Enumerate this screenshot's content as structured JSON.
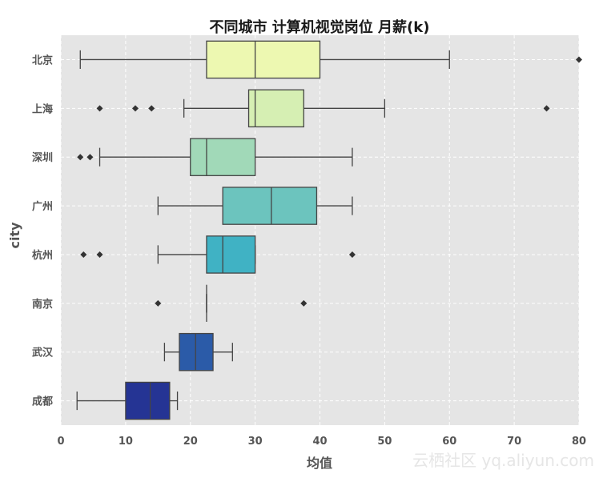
{
  "chart_data": {
    "type": "box",
    "orientation": "horizontal",
    "title": "不同城市 计算机视觉岗位 月薪(k)",
    "xlabel": "均值",
    "ylabel": "city",
    "xlim": [
      0,
      80
    ],
    "x_ticks": [
      0,
      10,
      20,
      30,
      40,
      50,
      60,
      70,
      80
    ],
    "grid": true,
    "categories": [
      "北京",
      "上海",
      "深圳",
      "广州",
      "杭州",
      "南京",
      "武汉",
      "成都"
    ],
    "boxes": [
      {
        "category": "北京",
        "whisker_low": 3,
        "q1": 22.5,
        "median": 30,
        "q3": 40,
        "whisker_high": 60,
        "outliers": [
          80
        ],
        "color": "#edf8b1"
      },
      {
        "category": "上海",
        "whisker_low": 19,
        "q1": 29,
        "median": 30,
        "q3": 37.5,
        "whisker_high": 50,
        "outliers": [
          6,
          11.5,
          14,
          75
        ],
        "color": "#d6efb3"
      },
      {
        "category": "深圳",
        "whisker_low": 6,
        "q1": 20,
        "median": 22.5,
        "q3": 30,
        "whisker_high": 45,
        "outliers": [
          3,
          4.5
        ],
        "color": "#a1d9b8"
      },
      {
        "category": "广州",
        "whisker_low": 15,
        "q1": 25,
        "median": 32.5,
        "q3": 39.5,
        "whisker_high": 45,
        "outliers": [],
        "color": "#6cc4be"
      },
      {
        "category": "杭州",
        "whisker_low": 15,
        "q1": 22.5,
        "median": 25,
        "q3": 30,
        "whisker_high": 30,
        "outliers": [
          3.5,
          6,
          45
        ],
        "color": "#40b2c4"
      },
      {
        "category": "南京",
        "whisker_low": 22.5,
        "q1": 22.5,
        "median": 22.5,
        "q3": 22.5,
        "whisker_high": 22.5,
        "outliers": [
          15,
          37.5
        ],
        "color": "#2a8fbe"
      },
      {
        "category": "武汉",
        "whisker_low": 16,
        "q1": 18.3,
        "median": 20.8,
        "q3": 23.5,
        "whisker_high": 26.5,
        "outliers": [],
        "color": "#2b5ba8"
      },
      {
        "category": "成都",
        "whisker_low": 2.5,
        "q1": 10,
        "median": 13.8,
        "q3": 16.8,
        "whisker_high": 18,
        "outliers": [],
        "color": "#253494"
      }
    ]
  },
  "watermark": "云栖社区 yq.aliyun.com"
}
